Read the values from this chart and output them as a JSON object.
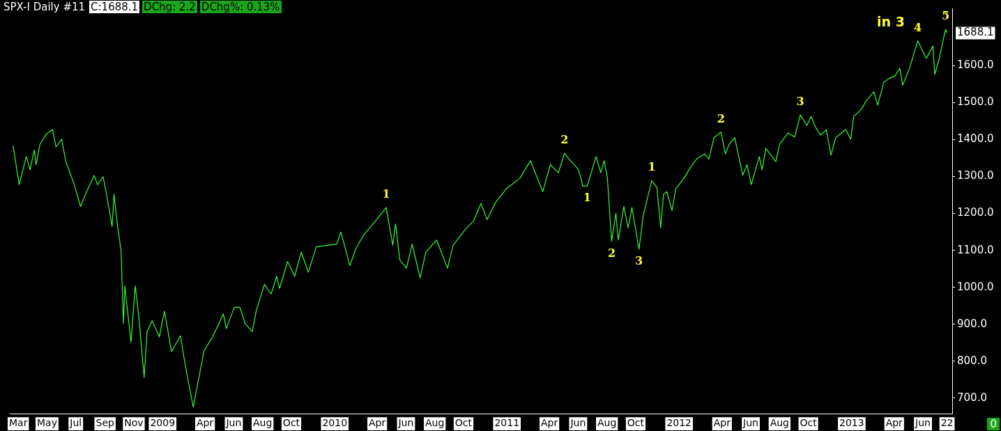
{
  "chart_data": {
    "type": "line",
    "title": "SPX-I Daily #11",
    "annotations": [
      "C:1688.1",
      "DChg: 2.2",
      "DChg%: 0.13%",
      "0",
      "in 3",
      {
        "text": "1688.1",
        "x": "2013-07-22",
        "y": 1688.1
      },
      {
        "text": "1",
        "x": "2010-04-20",
        "y": 1216
      },
      {
        "text": "2",
        "x": "2011-05-03",
        "y": 1363
      },
      {
        "text": "1",
        "x": "2011-06-20",
        "y": 1274
      },
      {
        "text": "2",
        "x": "2011-08-11",
        "y": 1125
      },
      {
        "text": "3",
        "x": "2011-10-08",
        "y": 1103
      },
      {
        "text": "1",
        "x": "2011-11-04",
        "y": 1289
      },
      {
        "text": "2",
        "x": "2012-03-30",
        "y": 1420
      },
      {
        "text": "3",
        "x": "2012-09-14",
        "y": 1467
      },
      {
        "text": "4",
        "x": "2013-05-21",
        "y": 1667
      },
      {
        "text": "5",
        "x": "2013-07-19",
        "y": 1698
      }
    ],
    "x": [
      "2008-02-19",
      "2008-03-03",
      "2008-03-18",
      "2008-03-26",
      "2008-04-04",
      "2008-04-08",
      "2008-04-16",
      "2008-04-30",
      "2008-05-13",
      "2008-05-20",
      "2008-06-01",
      "2008-06-10",
      "2008-06-27",
      "2008-07-11",
      "2008-07-24",
      "2008-08-09",
      "2008-08-16",
      "2008-08-28",
      "2008-09-04",
      "2008-09-16",
      "2008-09-20",
      "2008-09-27",
      "2008-10-05",
      "2008-10-10",
      "2008-10-13",
      "2008-10-21",
      "2008-10-26",
      "2008-11-04",
      "2008-11-11",
      "2008-11-23",
      "2008-11-29",
      "2008-12-10",
      "2008-12-25",
      "2009-01-05",
      "2009-01-20",
      "2009-02-08",
      "2009-02-18",
      "2009-03-07",
      "2009-03-30",
      "2009-04-17",
      "2009-05-10",
      "2009-05-16",
      "2009-06-02",
      "2009-06-14",
      "2009-06-25",
      "2009-07-10",
      "2009-07-19",
      "2009-08-05",
      "2009-08-19",
      "2009-08-31",
      "2009-09-06",
      "2009-09-23",
      "2009-10-08",
      "2009-10-22",
      "2009-11-06",
      "2009-11-23",
      "2009-12-19",
      "2010-01-05",
      "2010-01-14",
      "2010-02-02",
      "2010-02-15",
      "2010-03-04",
      "2010-03-28",
      "2010-04-20",
      "2010-05-04",
      "2010-05-10",
      "2010-05-19",
      "2010-06-02",
      "2010-06-14",
      "2010-07-01",
      "2010-07-13",
      "2010-08-05",
      "2010-08-28",
      "2010-09-09",
      "2010-10-05",
      "2010-10-22",
      "2010-11-07",
      "2010-11-20",
      "2010-12-08",
      "2010-12-31",
      "2011-01-29",
      "2011-02-20",
      "2011-03-02",
      "2011-03-18",
      "2011-04-03",
      "2011-04-20",
      "2011-05-03",
      "2011-05-13",
      "2011-06-02",
      "2011-06-11",
      "2011-06-20",
      "2011-07-09",
      "2011-07-19",
      "2011-07-26",
      "2011-08-02",
      "2011-08-11",
      "2011-08-20",
      "2011-08-25",
      "2011-09-06",
      "2011-09-15",
      "2011-09-23",
      "2011-10-08",
      "2011-10-17",
      "2011-11-04",
      "2011-11-15",
      "2011-11-23",
      "2011-11-29",
      "2011-12-06",
      "2011-12-17",
      "2011-12-25",
      "2012-01-12",
      "2012-01-23",
      "2012-02-07",
      "2012-02-24",
      "2012-03-04",
      "2012-03-15",
      "2012-03-30",
      "2012-04-08",
      "2012-04-16",
      "2012-04-28",
      "2012-05-15",
      "2012-05-24",
      "2012-06-02",
      "2012-06-19",
      "2012-06-25",
      "2012-07-03",
      "2012-07-24",
      "2012-08-01",
      "2012-08-19",
      "2012-09-02",
      "2012-09-14",
      "2012-09-28",
      "2012-10-07",
      "2012-10-16",
      "2012-10-27",
      "2012-11-08",
      "2012-11-18",
      "2012-11-28",
      "2012-12-19",
      "2012-12-30",
      "2013-01-05",
      "2013-01-22",
      "2013-01-31",
      "2013-02-17",
      "2013-02-25",
      "2013-03-10",
      "2013-03-21",
      "2013-04-03",
      "2013-04-13",
      "2013-04-19",
      "2013-05-04",
      "2013-05-21",
      "2013-06-08",
      "2013-06-16",
      "2013-06-22",
      "2013-06-26",
      "2013-07-05",
      "2013-07-16",
      "2013-07-19",
      "2013-07-22"
    ],
    "series": [
      {
        "color": "#33ff33",
        "values": [
          1383,
          1278,
          1354,
          1318,
          1372,
          1332,
          1387,
          1416,
          1427,
          1380,
          1401,
          1340,
          1281,
          1219,
          1259,
          1303,
          1278,
          1299,
          1252,
          1165,
          1252,
          1172,
          1099,
          902,
          1004,
          910,
          851,
          1004,
          928,
          756,
          880,
          910,
          866,
          935,
          826,
          869,
          789,
          676,
          829,
          866,
          928,
          888,
          946,
          946,
          902,
          880,
          939,
          1008,
          982,
          1030,
          997,
          1070,
          1030,
          1095,
          1041,
          1110,
          1114,
          1117,
          1150,
          1059,
          1106,
          1143,
          1179,
          1216,
          1114,
          1172,
          1074,
          1052,
          1117,
          1026,
          1095,
          1128,
          1052,
          1114,
          1157,
          1179,
          1227,
          1183,
          1230,
          1267,
          1296,
          1343,
          1310,
          1259,
          1332,
          1310,
          1363,
          1347,
          1318,
          1274,
          1274,
          1354,
          1310,
          1343,
          1296,
          1125,
          1201,
          1128,
          1219,
          1161,
          1216,
          1103,
          1194,
          1289,
          1270,
          1161,
          1252,
          1259,
          1208,
          1267,
          1296,
          1321,
          1347,
          1361,
          1347,
          1405,
          1420,
          1361,
          1387,
          1405,
          1303,
          1332,
          1278,
          1354,
          1318,
          1376,
          1340,
          1387,
          1418,
          1407,
          1467,
          1438,
          1463,
          1434,
          1412,
          1427,
          1358,
          1405,
          1427,
          1401,
          1463,
          1482,
          1504,
          1529,
          1493,
          1555,
          1565,
          1573,
          1593,
          1547,
          1595,
          1667,
          1620,
          1638,
          1653,
          1576,
          1616,
          1682,
          1698,
          1688.1
        ]
      }
    ],
    "xlim": [
      "2008-02-12",
      "2013-08-02"
    ],
    "xticks": [
      {
        "value": "2008-03-01",
        "label": "Mar"
      },
      {
        "value": "2008-05-01",
        "label": "May"
      },
      {
        "value": "2008-07-01",
        "label": "Jul"
      },
      {
        "value": "2008-09-01",
        "label": "Sep"
      },
      {
        "value": "2008-11-01",
        "label": "Nov"
      },
      {
        "value": "2009-01-01",
        "label": "2009"
      },
      {
        "value": "2009-04-01",
        "label": "Apr"
      },
      {
        "value": "2009-06-01",
        "label": "Jun"
      },
      {
        "value": "2009-08-01",
        "label": "Aug"
      },
      {
        "value": "2009-10-01",
        "label": "Oct"
      },
      {
        "value": "2010-01-01",
        "label": "2010"
      },
      {
        "value": "2010-04-01",
        "label": "Apr"
      },
      {
        "value": "2010-06-01",
        "label": "Jun"
      },
      {
        "value": "2010-08-01",
        "label": "Aug"
      },
      {
        "value": "2010-10-01",
        "label": "Oct"
      },
      {
        "value": "2011-01-01",
        "label": "2011"
      },
      {
        "value": "2011-04-01",
        "label": "Apr"
      },
      {
        "value": "2011-06-01",
        "label": "Jun"
      },
      {
        "value": "2011-08-01",
        "label": "Aug"
      },
      {
        "value": "2011-10-01",
        "label": "Oct"
      },
      {
        "value": "2012-01-01",
        "label": "2012"
      },
      {
        "value": "2012-04-01",
        "label": "Apr"
      },
      {
        "value": "2012-06-01",
        "label": "Jun"
      },
      {
        "value": "2012-08-01",
        "label": "Aug"
      },
      {
        "value": "2012-10-01",
        "label": "Oct"
      },
      {
        "value": "2013-01-01",
        "label": "2013"
      },
      {
        "value": "2013-04-01",
        "label": "Apr"
      },
      {
        "value": "2013-06-01",
        "label": "Jun"
      },
      {
        "value": "2013-07-22",
        "label": "22"
      }
    ],
    "ylim": [
      658,
      1755
    ],
    "yticks": [
      {
        "value": 700,
        "label": "700.0"
      },
      {
        "value": 800,
        "label": "800.0"
      },
      {
        "value": 900,
        "label": "900.0"
      },
      {
        "value": 1000,
        "label": "1000.0"
      },
      {
        "value": 1100,
        "label": "1100.0"
      },
      {
        "value": 1200,
        "label": "1200.0"
      },
      {
        "value": 1300,
        "label": "1300.0"
      },
      {
        "value": 1400,
        "label": "1400.0"
      },
      {
        "value": 1500,
        "label": "1500.0"
      },
      {
        "value": 1600,
        "label": "1600.0"
      }
    ],
    "grid": false,
    "legend": false,
    "marker": "none",
    "line_style": "solid"
  }
}
